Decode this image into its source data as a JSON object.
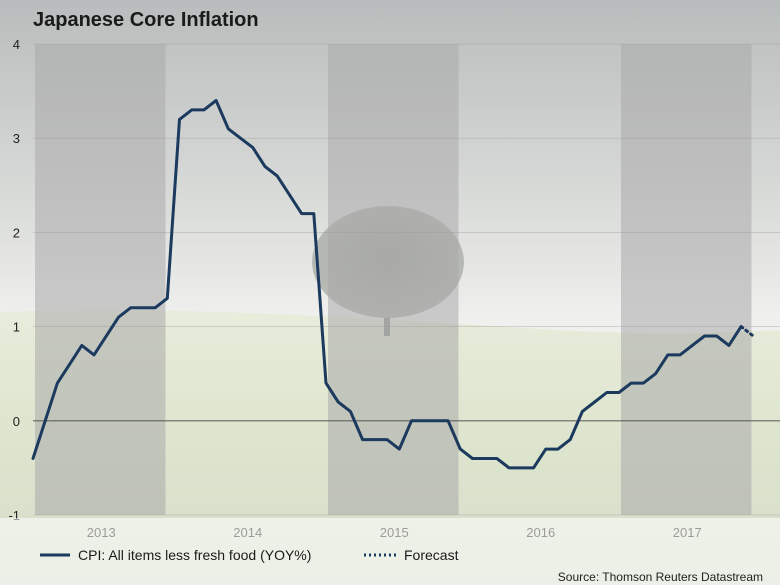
{
  "chart_data": {
    "type": "line",
    "title": "Japanese Core Inflation",
    "ylim": [
      -1,
      4
    ],
    "yticks": [
      4,
      3,
      2,
      1,
      0,
      -1
    ],
    "year_labels": [
      "2013",
      "2014",
      "2015",
      "2016",
      "2017"
    ],
    "grid": true,
    "legend_position": "bottom-left",
    "colors": {
      "series": "#1c3a5e",
      "band": "#a9a9a9",
      "zero_line": "#555555"
    },
    "series": [
      {
        "name": "CPI: All items less fresh food (YOY%)",
        "style": "solid",
        "points": [
          [
            "2013-01",
            -0.4
          ],
          [
            "2013-02",
            0.0
          ],
          [
            "2013-03",
            0.4
          ],
          [
            "2013-04",
            0.6
          ],
          [
            "2013-05",
            0.8
          ],
          [
            "2013-06",
            0.7
          ],
          [
            "2013-07",
            0.9
          ],
          [
            "2013-08",
            1.1
          ],
          [
            "2013-09",
            1.2
          ],
          [
            "2013-10",
            1.2
          ],
          [
            "2013-11",
            1.2
          ],
          [
            "2013-12",
            1.3
          ],
          [
            "2014-01",
            3.2
          ],
          [
            "2014-02",
            3.3
          ],
          [
            "2014-03",
            3.3
          ],
          [
            "2014-04",
            3.4
          ],
          [
            "2014-05",
            3.1
          ],
          [
            "2014-06",
            3.0
          ],
          [
            "2014-07",
            2.9
          ],
          [
            "2014-08",
            2.7
          ],
          [
            "2014-09",
            2.6
          ],
          [
            "2014-10",
            2.4
          ],
          [
            "2014-11",
            2.2
          ],
          [
            "2014-12",
            2.2
          ],
          [
            "2015-01",
            0.4
          ],
          [
            "2015-02",
            0.2
          ],
          [
            "2015-03",
            0.1
          ],
          [
            "2015-04",
            -0.2
          ],
          [
            "2015-05",
            -0.2
          ],
          [
            "2015-06",
            -0.2
          ],
          [
            "2015-07",
            -0.3
          ],
          [
            "2015-08",
            0.0
          ],
          [
            "2015-09",
            0.0
          ],
          [
            "2015-10",
            0.0
          ],
          [
            "2015-11",
            0.0
          ],
          [
            "2015-12",
            -0.3
          ],
          [
            "2016-01",
            -0.4
          ],
          [
            "2016-02",
            -0.4
          ],
          [
            "2016-03",
            -0.4
          ],
          [
            "2016-04",
            -0.5
          ],
          [
            "2016-05",
            -0.5
          ],
          [
            "2016-06",
            -0.5
          ],
          [
            "2016-07",
            -0.3
          ],
          [
            "2016-08",
            -0.3
          ],
          [
            "2016-09",
            -0.2
          ],
          [
            "2016-10",
            0.1
          ],
          [
            "2016-11",
            0.2
          ],
          [
            "2016-12",
            0.3
          ],
          [
            "2017-01",
            0.3
          ],
          [
            "2017-02",
            0.4
          ],
          [
            "2017-03",
            0.4
          ],
          [
            "2017-04",
            0.5
          ],
          [
            "2017-05",
            0.7
          ],
          [
            "2017-06",
            0.7
          ],
          [
            "2017-07",
            0.8
          ],
          [
            "2017-08",
            0.9
          ],
          [
            "2017-09",
            0.9
          ],
          [
            "2017-10",
            0.8
          ],
          [
            "2017-11",
            1.0
          ]
        ]
      },
      {
        "name": "Forecast",
        "style": "dotted",
        "points": [
          [
            "2017-11",
            1.0
          ],
          [
            "2017-12",
            0.9
          ]
        ]
      }
    ]
  },
  "source": "Source: Thomson Reuters Datastream"
}
